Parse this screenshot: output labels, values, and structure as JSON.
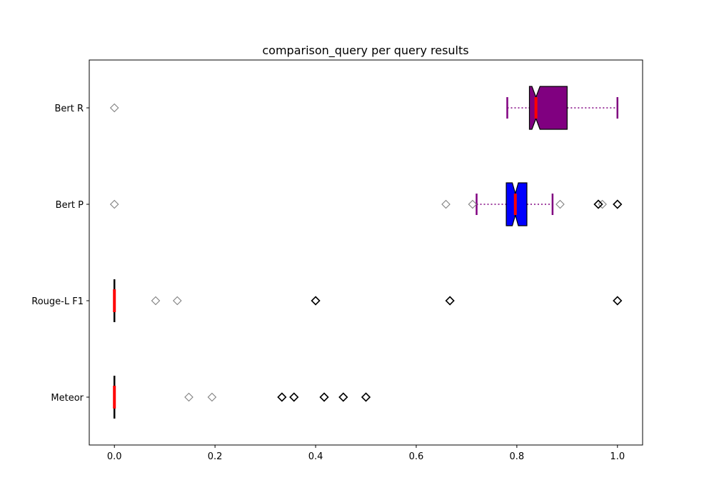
{
  "chart_data": {
    "type": "boxplot",
    "orientation": "horizontal",
    "title": "comparison_query per query results",
    "xlabel": "",
    "ylabel": "",
    "xlim": [
      -0.05,
      1.05
    ],
    "x_ticks": [
      0.0,
      0.2,
      0.4,
      0.6,
      0.8,
      1.0
    ],
    "x_tick_labels": [
      "0.0",
      "0.2",
      "0.4",
      "0.6",
      "0.8",
      "1.0"
    ],
    "categories": [
      "Meteor",
      "Rouge-L F1",
      "Bert P",
      "Bert R"
    ],
    "grid": false,
    "series": [
      {
        "category": "Meteor",
        "q1": 0.0,
        "median": 0.0,
        "q3": 0.0,
        "whisker_low": 0.0,
        "whisker_high": 0.0,
        "notch_low": 0.0,
        "notch_high": 0.0,
        "box_color": "#000000",
        "whisker_color": "#000000",
        "outliers_dark": [
          0.333,
          0.357,
          0.417,
          0.455,
          0.5
        ],
        "outliers_grey": [
          0.148,
          0.194
        ]
      },
      {
        "category": "Rouge-L F1",
        "q1": 0.0,
        "median": 0.0,
        "q3": 0.0,
        "whisker_low": 0.0,
        "whisker_high": 0.0,
        "notch_low": 0.0,
        "notch_high": 0.0,
        "box_color": "#000000",
        "whisker_color": "#000000",
        "outliers_dark": [
          0.4,
          0.667,
          1.0
        ],
        "outliers_grey": [
          0.082,
          0.125
        ]
      },
      {
        "category": "Bert P",
        "q1": 0.779,
        "median": 0.797,
        "q3": 0.82,
        "whisker_low": 0.72,
        "whisker_high": 0.871,
        "notch_low": 0.791,
        "notch_high": 0.803,
        "box_color": "#0000ff",
        "whisker_color": "#800080",
        "outliers_dark": [
          0.962,
          1.0
        ],
        "outliers_grey": [
          0.0,
          0.659,
          0.712,
          0.886,
          0.97
        ]
      },
      {
        "category": "Bert R",
        "q1": 0.825,
        "median": 0.838,
        "q3": 0.9,
        "whisker_low": 0.781,
        "whisker_high": 1.0,
        "notch_low": 0.83,
        "notch_high": 0.846,
        "box_color": "#800080",
        "whisker_color": "#800080",
        "outliers_dark": [],
        "outliers_grey": [
          0.0
        ]
      }
    ],
    "median_color": "#ff0000"
  }
}
